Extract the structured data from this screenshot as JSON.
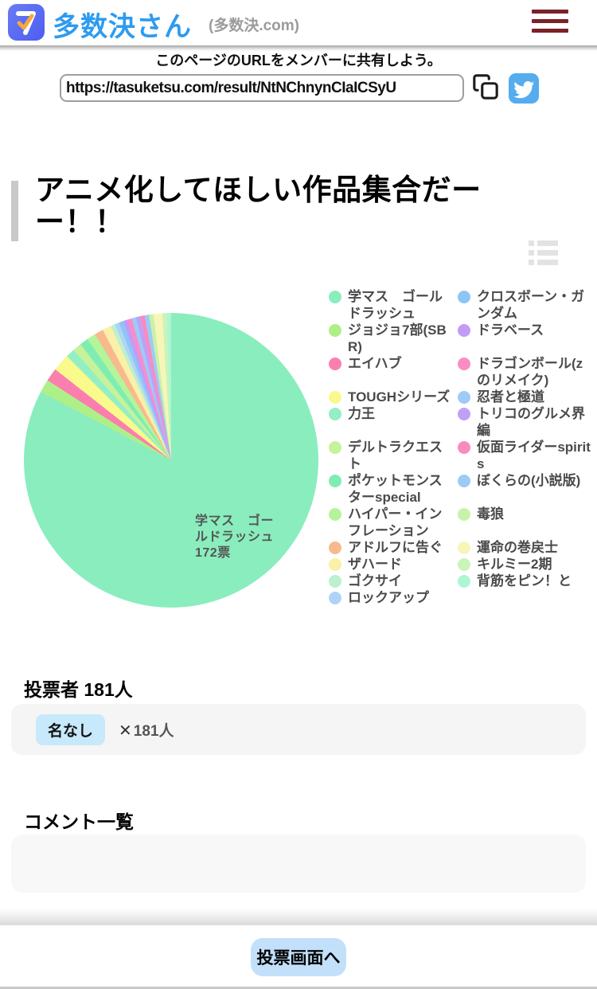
{
  "header": {
    "site_title": "多数決さん",
    "site_subtitle": "(多数決.com)"
  },
  "share": {
    "message": "このページのURLをメンバーに共有しよう。",
    "url": "https://tasuketsu.com/result/NtNChnynCIaICSyU"
  },
  "poll": {
    "title": "アニメ化してほしい作品集合だーー！！"
  },
  "chart_data": {
    "type": "pie",
    "title": "アニメ化してほしい作品集合だーー！！",
    "start_angle_deg": 0,
    "direction": "clockwise",
    "legend_position": "right",
    "labeled_slice": {
      "label": "学マス　ゴールドラッシュ",
      "votes": 172,
      "data_label_lines": [
        "学マス　ゴー",
        "ルドラッシュ",
        "172票"
      ]
    },
    "series": [
      {
        "label": "学マス　ゴールドラッシュ",
        "color": "#8aedbe",
        "votes": 172
      },
      {
        "label": "ジョジョ7部(SBR)",
        "color": "#aef087",
        "votes": 3
      },
      {
        "label": "エイハブ",
        "color": "#fa7fae",
        "votes": 3
      },
      {
        "label": "TOUGHシリーズ",
        "color": "#faf98c",
        "votes": 4
      },
      {
        "label": "力王",
        "color": "#93efc4",
        "votes": 2
      },
      {
        "label": "デルトラクエスト",
        "color": "#c5f29b",
        "votes": 2
      },
      {
        "label": "ポケットモンスターspecial",
        "color": "#7fedb2",
        "votes": 2
      },
      {
        "label": "ハイパー・インフレーション",
        "color": "#b4f59b",
        "votes": 2
      },
      {
        "label": "アドルフに告ぐ",
        "color": "#f8ba8c",
        "votes": 2
      },
      {
        "label": "ザハード",
        "color": "#faf0a8",
        "votes": 2
      },
      {
        "label": "ゴクサイ",
        "color": "#bdf0ce",
        "votes": 1
      },
      {
        "label": "ロックアップ",
        "color": "#afd3f7",
        "votes": 1
      },
      {
        "label": "クロスボーン・ガンダム",
        "color": "#8cc6f5",
        "votes": 1
      },
      {
        "label": "ドラベース",
        "color": "#c49af7",
        "votes": 1
      },
      {
        "label": "ドラゴンボール(zのリメイク)",
        "color": "#fa8cc6",
        "votes": 1
      },
      {
        "label": "忍者と極道",
        "color": "#9ccbf7",
        "votes": 1
      },
      {
        "label": "トリコのグルメ界編",
        "color": "#c0a0f7",
        "votes": 1
      },
      {
        "label": "仮面ライダーspirits",
        "color": "#f78cc0",
        "votes": 1
      },
      {
        "label": "ぼくらの(小説版)",
        "color": "#9ccbf7",
        "votes": 1
      },
      {
        "label": "毒狼",
        "color": "#c9f2a8",
        "votes": 1
      },
      {
        "label": "運命の巻戻士",
        "color": "#f8f5b8",
        "votes": 2
      },
      {
        "label": "キルミー2期",
        "color": "#c9f5b8",
        "votes": 1
      },
      {
        "label": "背筋をピン！と",
        "color": "#b0f5d2",
        "votes": 1
      }
    ],
    "legend_display_order": [
      0,
      12,
      1,
      13,
      2,
      14,
      3,
      15,
      4,
      16,
      5,
      17,
      6,
      18,
      7,
      19,
      8,
      20,
      9,
      21,
      10,
      22,
      11
    ]
  },
  "voters": {
    "heading": "投票者 181人",
    "tag_label": "名なし",
    "times_symbol": "✕",
    "count_label": "181人"
  },
  "comments": {
    "heading": "コメント一覧"
  },
  "footer": {
    "vote_button_label": "投票画面へ"
  },
  "colors": {
    "brand_blue": "#2d9bf0",
    "logo_tile_blue": "#5865f2",
    "logo_check_orange": "#f6a93b",
    "hamburger_maroon": "#7a2228",
    "twitter_blue": "#55acee",
    "tag_badge_blue": "#c7e9fb",
    "vote_button_blue": "#c2e0fa",
    "title_accent_gray": "#c9c9c9"
  }
}
